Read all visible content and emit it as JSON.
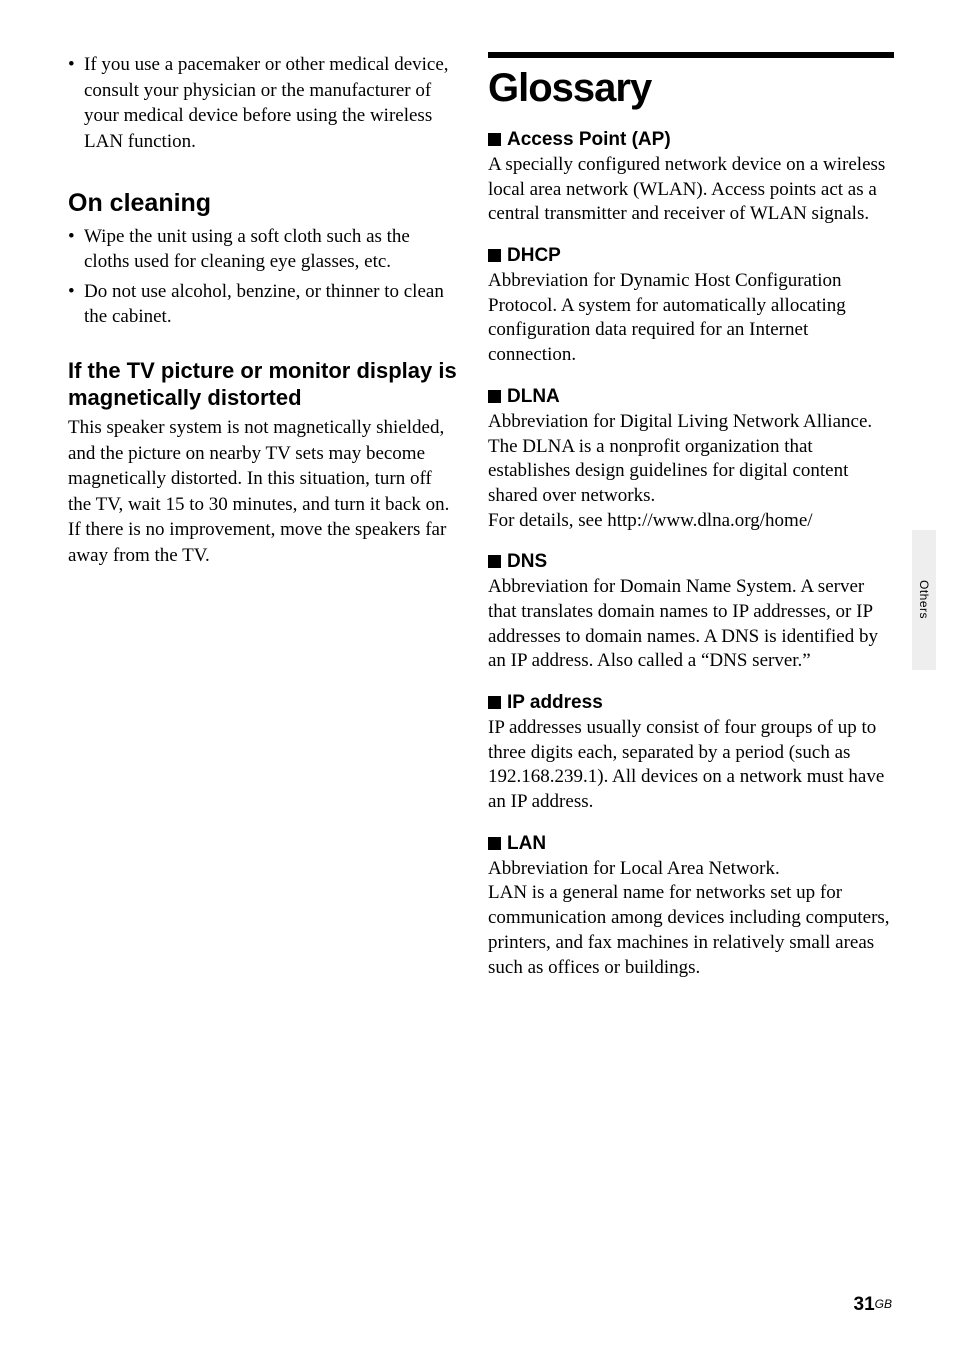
{
  "left": {
    "pacemaker_bullet": "If you use a pacemaker or other medical device, consult your physician or the manufacturer of your medical device before using the wireless LAN function.",
    "cleaning_heading": "On cleaning",
    "cleaning_bullets": [
      "Wipe the unit using a soft cloth such as the cloths used for cleaning eye glasses, etc.",
      "Do not use alcohol, benzine, or thinner to clean the cabinet."
    ],
    "tv_heading": "If the TV picture or monitor display is magnetically distorted",
    "tv_body": "This speaker system is not magnetically shielded, and the picture on nearby TV sets may become magnetically distorted. In this situation, turn off the TV, wait 15 to 30 minutes, and turn it back on. If there is no improvement, move the speakers far away from the TV."
  },
  "right": {
    "chapter": "Glossary",
    "terms": [
      {
        "head": "Access Point (AP)",
        "body": "A specially configured network device on a wireless local area network (WLAN). Access points act as a central transmitter and receiver of WLAN signals."
      },
      {
        "head": "DHCP",
        "body": "Abbreviation for Dynamic Host Configuration Protocol. A system for automatically allocating configuration data required for an Internet connection."
      },
      {
        "head": "DLNA",
        "body": "Abbreviation for Digital Living Network Alliance. The DLNA is a nonprofit organization that establishes design guidelines for digital content shared over networks.\nFor details, see http://www.dlna.org/home/"
      },
      {
        "head": "DNS",
        "body": "Abbreviation for Domain Name System. A server that translates domain names to IP addresses, or IP addresses to domain names. A DNS is identified by an IP address. Also called a “DNS server.”"
      },
      {
        "head": "IP address",
        "body": "IP addresses usually consist of four groups of up to three digits each, separated by a period (such as 192.168.239.1). All devices on a network must have an IP address."
      },
      {
        "head": "LAN",
        "body": "Abbreviation for Local Area Network.\nLAN is a general name for networks set up for communication among devices including computers, printers, and fax machines in relatively small areas such as offices or buildings."
      }
    ]
  },
  "side_tab": "Others",
  "page_number": "31",
  "page_suffix": "GB"
}
